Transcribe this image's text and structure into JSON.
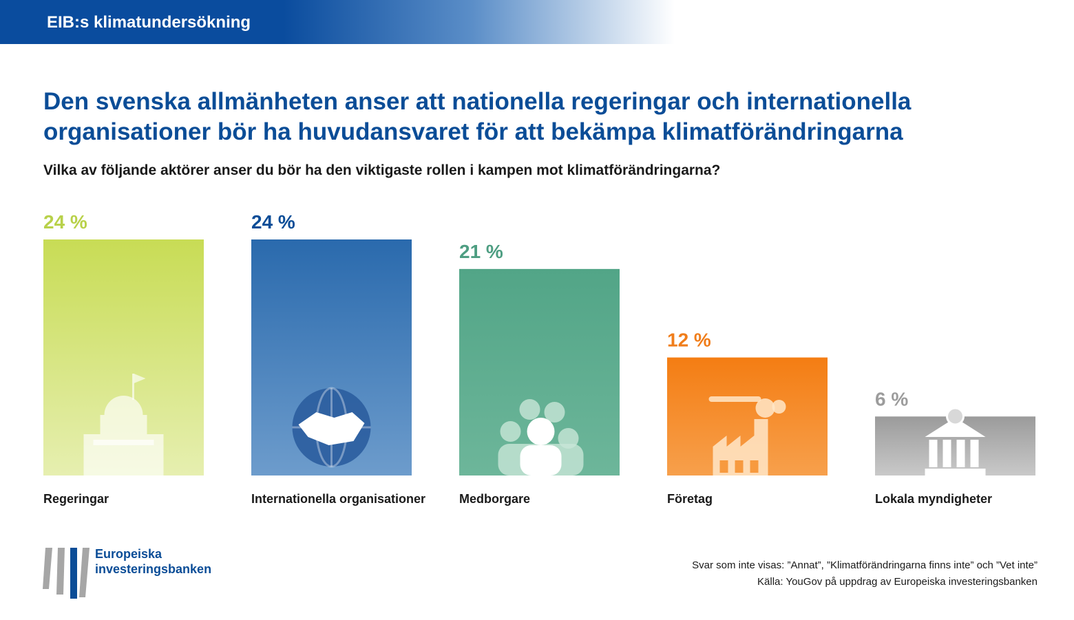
{
  "header": {
    "title": "EIB:s klimatundersökning"
  },
  "headline": "Den svenska allmänheten anser att nationella regeringar och internationella organisationer bör ha huvudansvaret för att bekämpa klimatförändringarna",
  "question": "Vilka av följande aktörer anser du bör ha den viktigaste rollen i kampen mot klimatförändringarna?",
  "chart_data": {
    "type": "bar",
    "categories": [
      "Regeringar",
      "Internationella organisationer",
      "Medborgare",
      "Företag",
      "Lokala myndigheter"
    ],
    "values": [
      24,
      24,
      21,
      12,
      6
    ],
    "value_labels": [
      "24 %",
      "24 %",
      "21 %",
      "12 %",
      "6 %"
    ],
    "unit": "%",
    "ylim": [
      0,
      24
    ],
    "grid": false,
    "colors": [
      "#c8dc55",
      "#2a6aad",
      "#52a587",
      "#f47d13",
      "#9b9b9b"
    ],
    "bar_gradient_light": [
      "#e6efb0",
      "#6d9ccc",
      "#6db69a",
      "#f7a04c",
      "#c9c9c9"
    ],
    "label_colors": [
      "#b8d14a",
      "#0b4d97",
      "#4e9e82",
      "#f07d1a",
      "#9c9c9c"
    ],
    "icons": [
      "government-building-icon",
      "globe-handshake-icon",
      "people-group-icon",
      "factory-icon",
      "bank-pin-icon"
    ]
  },
  "logo": {
    "line1": "Europeiska",
    "line2": "investeringsbanken"
  },
  "footnotes": {
    "note": "Svar som inte visas: ”Annat”, ”Klimatförändringarna finns inte” och ”Vet inte”",
    "source": "Källa: YouGov på uppdrag av Europeiska investeringsbanken"
  }
}
